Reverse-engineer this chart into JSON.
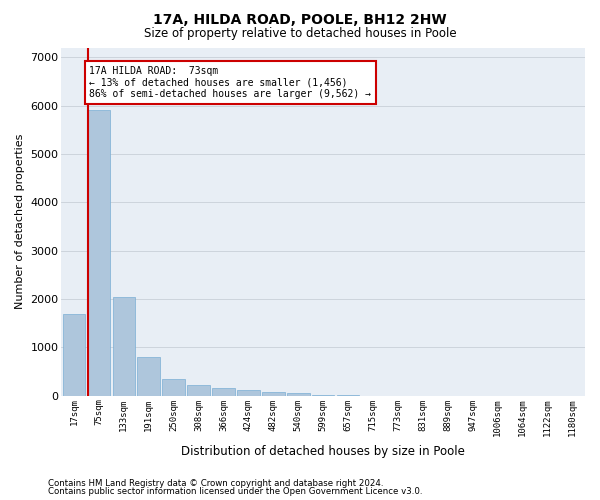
{
  "title1": "17A, HILDA ROAD, POOLE, BH12 2HW",
  "title2": "Size of property relative to detached houses in Poole",
  "xlabel": "Distribution of detached houses by size in Poole",
  "ylabel": "Number of detached properties",
  "categories": [
    "17sqm",
    "75sqm",
    "133sqm",
    "191sqm",
    "250sqm",
    "308sqm",
    "366sqm",
    "424sqm",
    "482sqm",
    "540sqm",
    "599sqm",
    "657sqm",
    "715sqm",
    "773sqm",
    "831sqm",
    "889sqm",
    "947sqm",
    "1006sqm",
    "1064sqm",
    "1122sqm",
    "1180sqm"
  ],
  "values": [
    1700,
    5900,
    2050,
    800,
    350,
    230,
    170,
    110,
    70,
    50,
    25,
    15,
    5,
    0,
    0,
    0,
    0,
    0,
    0,
    0,
    0
  ],
  "bar_color": "#aec6dc",
  "bar_edge_color": "#7aaed4",
  "annotation_line1": "17A HILDA ROAD:  73sqm",
  "annotation_line2": "← 13% of detached houses are smaller (1,456)",
  "annotation_line3": "86% of semi-detached houses are larger (9,562) →",
  "annotation_box_color": "#ffffff",
  "annotation_box_edge_color": "#cc0000",
  "vline_color": "#cc0000",
  "vline_x_bar_index": 1,
  "bar_width": 0.9,
  "ylim": [
    0,
    7200
  ],
  "yticks": [
    0,
    1000,
    2000,
    3000,
    4000,
    5000,
    6000,
    7000
  ],
  "grid_color": "#c8d0d8",
  "bg_color": "#e8eef5",
  "footnote1": "Contains HM Land Registry data © Crown copyright and database right 2024.",
  "footnote2": "Contains public sector information licensed under the Open Government Licence v3.0."
}
